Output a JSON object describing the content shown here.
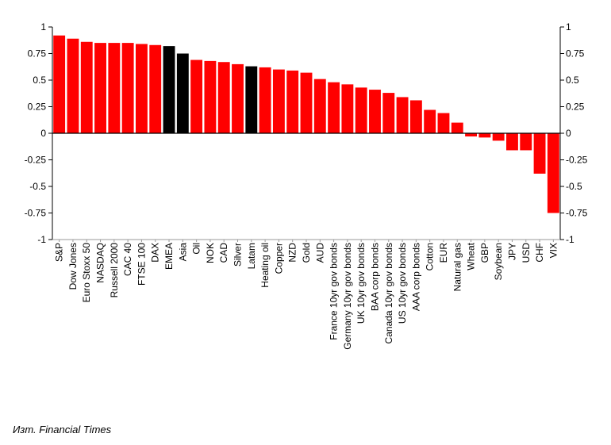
{
  "chart_data": {
    "type": "bar",
    "ylim": [
      -1,
      1
    ],
    "yticks": [
      1,
      0.75,
      0.5,
      0.25,
      0,
      -0.25,
      -0.5,
      -0.75,
      -1
    ],
    "ytick_labels": [
      "1",
      "0.75",
      "0.5",
      "0.25",
      "0",
      "-0.25",
      "-0.5",
      "-0.75",
      "-1"
    ],
    "grid": false,
    "categories": [
      "S&P",
      "Dow Jones",
      "Euro Stoxx 50",
      "NASDAQ",
      "Russell 2000",
      "CAC 40",
      "FTSE 100",
      "DAX",
      "EMEA",
      "Asia",
      "Oil",
      "NOK",
      "CAD",
      "Silver",
      "Latam",
      "Heating oil",
      "Copper",
      "NZD",
      "Gold",
      "AUD",
      "France 10yr gov bonds",
      "Germany 10yr gov bonds",
      "UK 10yr gov bonds",
      "BAA corp bonds",
      "Canada 10yr gov bonds",
      "US 10yr gov bonds",
      "AAA corp bonds",
      "Cotton",
      "EUR",
      "Natural gas",
      "Wheat",
      "GBP",
      "Soybean",
      "JPY",
      "USD",
      "CHF",
      "VIX"
    ],
    "values": [
      0.92,
      0.89,
      0.86,
      0.85,
      0.85,
      0.85,
      0.84,
      0.83,
      0.82,
      0.75,
      0.69,
      0.68,
      0.67,
      0.65,
      0.63,
      0.62,
      0.6,
      0.59,
      0.57,
      0.51,
      0.48,
      0.46,
      0.43,
      0.41,
      0.38,
      0.34,
      0.31,
      0.22,
      0.19,
      0.1,
      -0.03,
      -0.04,
      -0.07,
      -0.16,
      -0.16,
      -0.38,
      -0.75
    ],
    "highlighted": [
      "EMEA",
      "Asia",
      "Latam"
    ],
    "colors": {
      "bar": "#ff0000",
      "highlight": "#000000",
      "axis": "#000000"
    }
  },
  "source": "Изт. Financial Times"
}
